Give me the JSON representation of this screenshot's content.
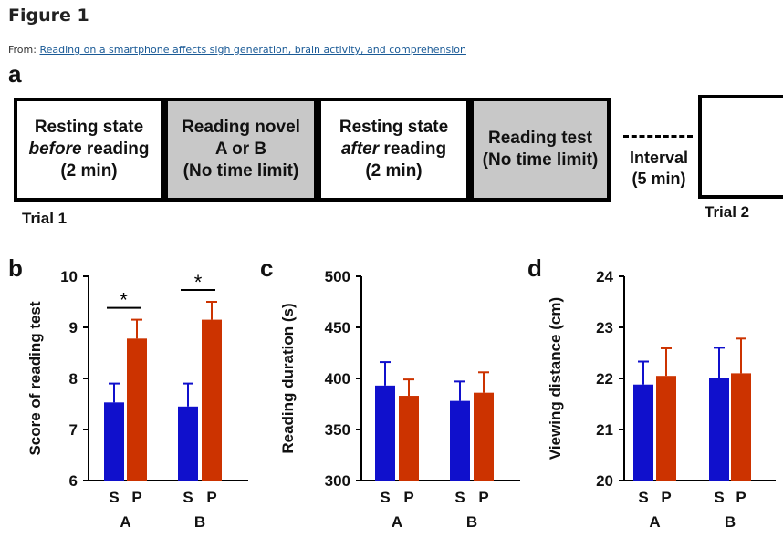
{
  "figure": {
    "title": "Figure 1",
    "from_prefix": "From: ",
    "source_link": "Reading on a smartphone affects sigh generation, brain activity, and comprehension"
  },
  "panel_a": {
    "letter": "a",
    "boxes": [
      {
        "line1": "Resting state",
        "line2_em": "before",
        "line2_rest": " reading",
        "line3": "(2 min)"
      },
      {
        "line1": "Reading novel",
        "line2": "A or B",
        "line3": "(No time limit)"
      },
      {
        "line1": "Resting state",
        "line2_em": "after",
        "line2_rest": " reading",
        "line3": "(2 min)"
      },
      {
        "line1": "Reading test",
        "line2": "(No time limit)"
      }
    ],
    "interval_line1": "Interval",
    "interval_line2": "(5 min)",
    "trial1": "Trial 1",
    "trial2": "Trial 2"
  },
  "chart_data": [
    {
      "panel": "b",
      "type": "bar",
      "ylabel": "Score of reading test",
      "ylim": [
        6,
        10
      ],
      "yticks": [
        6,
        7,
        8,
        9,
        10
      ],
      "groups": [
        "A",
        "B"
      ],
      "conditions": [
        "S",
        "P"
      ],
      "colors": [
        "#1010cc",
        "#cc3300"
      ],
      "values": [
        [
          7.53,
          8.78
        ],
        [
          7.45,
          9.15
        ]
      ],
      "errors": [
        [
          0.37,
          0.37
        ],
        [
          0.45,
          0.35
        ]
      ],
      "significance": [
        "*",
        "*"
      ]
    },
    {
      "panel": "c",
      "type": "bar",
      "ylabel": "Reading duration (s)",
      "ylim": [
        300,
        500
      ],
      "yticks": [
        300,
        350,
        400,
        450,
        500
      ],
      "groups": [
        "A",
        "B"
      ],
      "conditions": [
        "S",
        "P"
      ],
      "colors": [
        "#1010cc",
        "#cc3300"
      ],
      "values": [
        [
          393,
          383
        ],
        [
          378,
          386
        ]
      ],
      "errors": [
        [
          23,
          16
        ],
        [
          19,
          20
        ]
      ],
      "significance": []
    },
    {
      "panel": "d",
      "type": "bar",
      "ylabel": "Viewing distance (cm)",
      "ylim": [
        20,
        24
      ],
      "yticks": [
        20,
        21,
        22,
        23,
        24
      ],
      "groups": [
        "A",
        "B"
      ],
      "conditions": [
        "S",
        "P"
      ],
      "colors": [
        "#1010cc",
        "#cc3300"
      ],
      "values": [
        [
          21.88,
          22.05
        ],
        [
          22.0,
          22.1
        ]
      ],
      "errors": [
        [
          0.45,
          0.54
        ],
        [
          0.6,
          0.68
        ]
      ],
      "significance": []
    }
  ]
}
